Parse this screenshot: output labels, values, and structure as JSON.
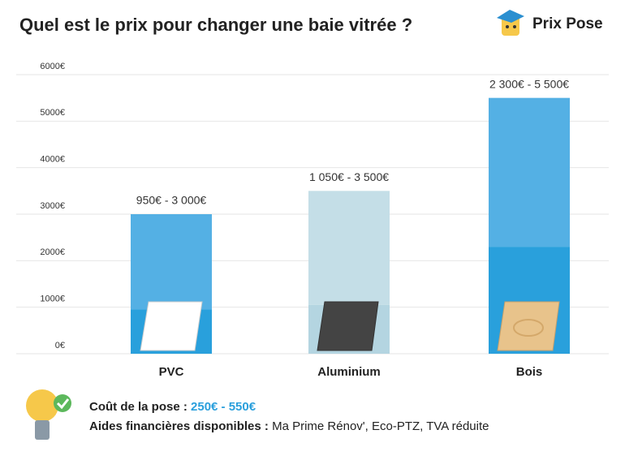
{
  "chart_data": {
    "type": "range-bar",
    "title": "Quel est le prix pour changer une baie vitrée ?",
    "categories": [
      "PVC",
      "Aluminium",
      "Bois"
    ],
    "low": [
      950,
      1050,
      2300
    ],
    "high": [
      3000,
      3500,
      5500
    ],
    "value_labels": [
      "950€ - 3 000€",
      "1 050€ - 3 500€",
      "2 300€ - 5 500€"
    ],
    "colors_low": [
      "#29a0dc",
      "#b4d5e1",
      "#29a0dc"
    ],
    "colors_high": [
      "#54b0e4",
      "#c4dee7",
      "#54b0e4"
    ],
    "ylim": [
      0,
      6000
    ],
    "yticks": [
      {
        "value": 0,
        "label": "0€"
      },
      {
        "value": 1000,
        "label": "1000€"
      },
      {
        "value": 2000,
        "label": "2000€"
      },
      {
        "value": 3000,
        "label": "3000€"
      },
      {
        "value": 4000,
        "label": "4000€"
      },
      {
        "value": 5000,
        "label": "5000€"
      },
      {
        "value": 6000,
        "label": "6000€"
      }
    ],
    "grid": true
  },
  "brand": "Prix Pose",
  "footer": {
    "cost_label": "Coût de la pose :",
    "cost_value": "250€ - 550€",
    "aid_label": "Aides financières disponibles :",
    "aid_value": "Ma Prime Rénov', Eco-PTZ, TVA réduite"
  }
}
